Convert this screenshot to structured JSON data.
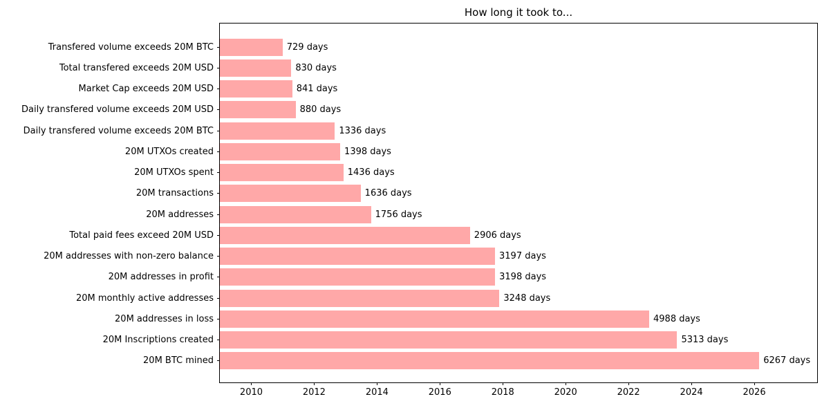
{
  "chart_data": {
    "type": "bar",
    "orientation": "horizontal",
    "title": "How long it took to...",
    "categories": [
      "Transfered volume exceeds 20M BTC",
      "Total transfered exceeds 20M USD",
      "Market Cap exceeds 20M USD",
      "Daily transfered volume exceeds 20M USD",
      "Daily transfered volume exceeds 20M BTC",
      "20M UTXOs created",
      "20M UTXOs spent",
      "20M transactions",
      "20M addresses",
      "Total paid fees exceed 20M USD",
      "20M addresses with non-zero balance",
      "20M addresses in profit",
      "20M monthly active addresses",
      "20M addresses in loss",
      "20M Inscriptions created",
      "20M BTC mined"
    ],
    "values": [
      729,
      830,
      841,
      880,
      1336,
      1398,
      1436,
      1636,
      1756,
      2906,
      3197,
      3198,
      3248,
      4988,
      5313,
      6267
    ],
    "value_labels": [
      "729 days",
      "830 days",
      "841 days",
      "880 days",
      "1336 days",
      "1398 days",
      "1436 days",
      "1636 days",
      "1756 days",
      "2906 days",
      "3197 days",
      "3198 days",
      "3248 days",
      "4988 days",
      "5313 days",
      "6267 days"
    ],
    "value_unit": "days",
    "xlabel": "",
    "ylabel": "",
    "x_ticks": [
      2010,
      2012,
      2014,
      2016,
      2018,
      2020,
      2022,
      2024,
      2026
    ],
    "x_range": [
      2009.0,
      2028.0
    ],
    "days_per_year": 365.25,
    "bar_color": "#ffa8a8",
    "grid": false,
    "legend": "none"
  }
}
